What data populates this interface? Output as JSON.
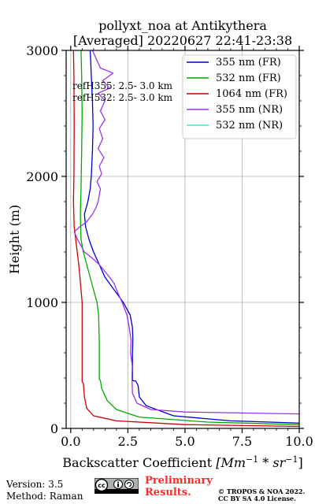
{
  "chart_data": {
    "type": "line",
    "title": [
      "pollyxt_noa at Antikythera",
      "[Averaged] 20220627 22:41-23:38"
    ],
    "xlabel_prefix": "Backscatter Coefficient ",
    "xlabel_math": "[Mm",
    "xlabel_sup1": "−1",
    "xlabel_mid": " * sr",
    "xlabel_sup2": "−1",
    "xlabel_end": "]",
    "ylabel": "Height (m)",
    "xlim": [
      -0.2,
      10.0
    ],
    "ylim": [
      0,
      3000
    ],
    "xticks": [
      0.0,
      2.5,
      5.0,
      7.5,
      10.0
    ],
    "xtick_labels": [
      "0.0",
      "2.5",
      "5.0",
      "7.5",
      "10.0"
    ],
    "yticks": [
      0,
      1000,
      2000,
      3000
    ],
    "ytick_labels": [
      "0",
      "1000",
      "2000",
      "3000"
    ],
    "grid": true,
    "legend_position": "top-right",
    "annotations": [
      "refH355:  2.5- 3.0 km",
      "refH532:  2.5- 3.0 km"
    ],
    "series": [
      {
        "name": "355 nm (FR)",
        "color": "#0000cc",
        "points": [
          [
            12,
            30
          ],
          [
            7,
            60
          ],
          [
            4.5,
            100
          ],
          [
            3.3,
            180
          ],
          [
            3.0,
            250
          ],
          [
            2.95,
            340
          ],
          [
            2.85,
            375
          ],
          [
            2.7,
            380
          ],
          [
            2.7,
            600
          ],
          [
            2.72,
            700
          ],
          [
            2.7,
            800
          ],
          [
            2.6,
            900
          ],
          [
            2.3,
            1000
          ],
          [
            1.9,
            1100
          ],
          [
            1.5,
            1200
          ],
          [
            1.25,
            1300
          ],
          [
            1.0,
            1400
          ],
          [
            0.8,
            1500
          ],
          [
            0.65,
            1600
          ],
          [
            0.6,
            1700
          ],
          [
            0.75,
            1800
          ],
          [
            0.85,
            1900
          ],
          [
            0.9,
            2000
          ],
          [
            0.95,
            2200
          ],
          [
            0.98,
            2400
          ],
          [
            0.95,
            2600
          ],
          [
            0.9,
            2800
          ],
          [
            0.88,
            2900
          ],
          [
            0.85,
            3000
          ]
        ]
      },
      {
        "name": "532 nm (FR)",
        "color": "#00aa00",
        "points": [
          [
            12,
            20
          ],
          [
            6,
            50
          ],
          [
            3,
            90
          ],
          [
            2,
            150
          ],
          [
            1.6,
            220
          ],
          [
            1.35,
            320
          ],
          [
            1.3,
            380
          ],
          [
            1.25,
            390
          ],
          [
            1.25,
            700
          ],
          [
            1.22,
            900
          ],
          [
            1.15,
            1000
          ],
          [
            1.0,
            1100
          ],
          [
            0.85,
            1200
          ],
          [
            0.7,
            1300
          ],
          [
            0.55,
            1400
          ],
          [
            0.45,
            1500
          ],
          [
            0.42,
            1700
          ],
          [
            0.45,
            1900
          ],
          [
            0.48,
            2200
          ],
          [
            0.5,
            2500
          ],
          [
            0.48,
            2800
          ],
          [
            0.45,
            3000
          ]
        ]
      },
      {
        "name": "1064 nm (FR)",
        "color": "#cc0000",
        "points": [
          [
            12,
            10
          ],
          [
            5,
            30
          ],
          [
            2,
            60
          ],
          [
            1.0,
            100
          ],
          [
            0.7,
            160
          ],
          [
            0.6,
            250
          ],
          [
            0.55,
            360
          ],
          [
            0.5,
            370
          ],
          [
            0.5,
            1000
          ],
          [
            0.45,
            1100
          ],
          [
            0.35,
            1300
          ],
          [
            0.25,
            1450
          ],
          [
            0.15,
            1600
          ],
          [
            0.12,
            1800
          ],
          [
            0.14,
            2000
          ],
          [
            0.15,
            2400
          ],
          [
            0.14,
            2800
          ],
          [
            0.12,
            3000
          ]
        ]
      },
      {
        "name": "355 nm (NR)",
        "color": "#9933ee",
        "points": [
          [
            10.0,
            115
          ],
          [
            5.0,
            130
          ],
          [
            3.5,
            150
          ],
          [
            2.9,
            200
          ],
          [
            2.7,
            280
          ],
          [
            2.68,
            400
          ],
          [
            2.69,
            500
          ],
          [
            2.62,
            600
          ],
          [
            2.64,
            700
          ],
          [
            2.56,
            800
          ],
          [
            2.46,
            900
          ],
          [
            2.25,
            1000
          ],
          [
            2.05,
            1080
          ],
          [
            1.9,
            1150
          ],
          [
            1.7,
            1200
          ],
          [
            1.25,
            1300
          ],
          [
            0.95,
            1350
          ],
          [
            0.6,
            1400
          ],
          [
            0.3,
            1500
          ],
          [
            0.15,
            1560
          ],
          [
            0.4,
            1600
          ],
          [
            0.7,
            1640
          ],
          [
            0.95,
            1700
          ],
          [
            1.1,
            1750
          ],
          [
            1.2,
            1800
          ],
          [
            1.3,
            1900
          ],
          [
            1.15,
            1960
          ],
          [
            1.35,
            2020
          ],
          [
            1.25,
            2080
          ],
          [
            1.45,
            2150
          ],
          [
            1.2,
            2220
          ],
          [
            1.4,
            2300
          ],
          [
            1.25,
            2380
          ],
          [
            1.5,
            2450
          ],
          [
            1.3,
            2520
          ],
          [
            1.5,
            2600
          ],
          [
            1.2,
            2660
          ],
          [
            1.7,
            2700
          ],
          [
            1.4,
            2760
          ],
          [
            1.85,
            2820
          ],
          [
            1.3,
            2860
          ],
          [
            1.2,
            2900
          ],
          [
            1.1,
            2940
          ],
          [
            1.0,
            2980
          ],
          [
            0.95,
            3000
          ]
        ]
      },
      {
        "name": "532 nm (NR)",
        "color": "#33eecc",
        "points": []
      }
    ]
  },
  "footer": {
    "version": "Version: 3.5",
    "method": "Method: Raman",
    "preliminary_line1": "Preliminary",
    "preliminary_line2": "Results.",
    "copyright_line1": "© TROPOS & NOA 2022.",
    "copyright_line2": "CC BY SA 4.0 License."
  }
}
